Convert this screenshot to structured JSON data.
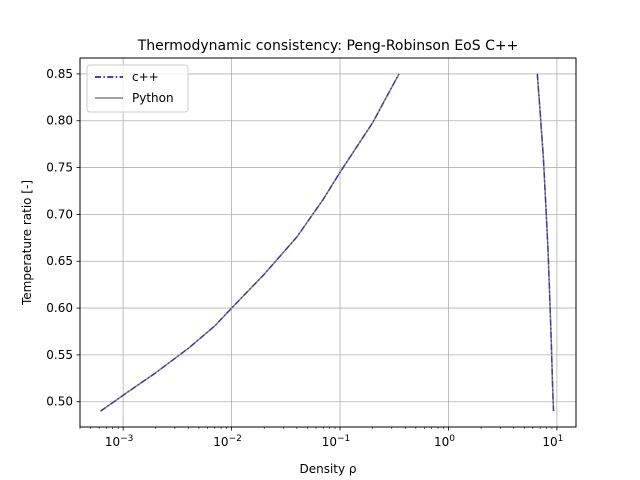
{
  "chart_data": {
    "type": "line",
    "title": "Thermodynamic consistency: Peng-Robinson EoS C++",
    "xlabel": "Density ρ",
    "ylabel": "Temperature ratio [-]",
    "xscale": "log",
    "xlim": [
      0.0004,
      15
    ],
    "ylim": [
      0.473,
      0.867
    ],
    "x_ticks": [
      {
        "value": 0.001,
        "base": "10",
        "exp": "−3"
      },
      {
        "value": 0.01,
        "base": "10",
        "exp": "−2"
      },
      {
        "value": 0.1,
        "base": "10",
        "exp": "−1"
      },
      {
        "value": 1,
        "base": "10",
        "exp": "0"
      },
      {
        "value": 10,
        "base": "10",
        "exp": "1"
      }
    ],
    "y_ticks": [
      "0.50",
      "0.55",
      "0.60",
      "0.65",
      "0.70",
      "0.75",
      "0.80",
      "0.85"
    ],
    "grid": true,
    "legend_position": "top-left",
    "series": [
      {
        "name": "c++",
        "color": "#0000cc",
        "style": "dashdot",
        "branches": [
          {
            "x": [
              0.00062,
              0.001,
              0.002,
              0.004,
              0.007,
              0.01,
              0.02,
              0.04,
              0.07,
              0.1,
              0.2,
              0.35
            ],
            "y": [
              0.49,
              0.507,
              0.531,
              0.557,
              0.581,
              0.6,
              0.636,
              0.676,
              0.716,
              0.745,
              0.798,
              0.85
            ]
          },
          {
            "x": [
              6.6,
              7.0,
              7.5,
              7.9,
              8.3,
              8.6,
              8.9,
              9.1,
              9.3
            ],
            "y": [
              0.85,
              0.81,
              0.76,
              0.71,
              0.66,
              0.61,
              0.56,
              0.52,
              0.49
            ]
          }
        ]
      },
      {
        "name": "Python",
        "color": "#808080",
        "style": "solid",
        "branches": [
          {
            "x": [
              0.00062,
              0.001,
              0.002,
              0.004,
              0.007,
              0.01,
              0.02,
              0.04,
              0.07,
              0.1,
              0.2,
              0.35
            ],
            "y": [
              0.49,
              0.507,
              0.531,
              0.557,
              0.581,
              0.6,
              0.636,
              0.676,
              0.716,
              0.745,
              0.798,
              0.85
            ]
          },
          {
            "x": [
              6.6,
              7.0,
              7.5,
              7.9,
              8.3,
              8.6,
              8.9,
              9.1,
              9.3
            ],
            "y": [
              0.85,
              0.81,
              0.76,
              0.71,
              0.66,
              0.61,
              0.56,
              0.52,
              0.49
            ]
          }
        ]
      }
    ]
  }
}
